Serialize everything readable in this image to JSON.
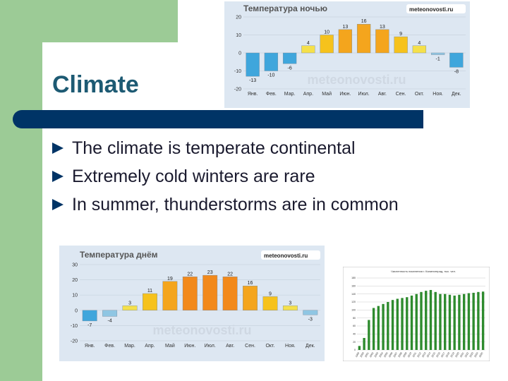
{
  "slide": {
    "title": "Climate",
    "bullets": [
      "The climate is temperate continental",
      "Extremely cold winters are rare",
      "In summer, thunderstorms are in common"
    ]
  },
  "colors": {
    "green": "#9ccb96",
    "navy": "#003466",
    "title": "#1d5a73"
  },
  "chart_data": [
    {
      "type": "bar",
      "title": "Температура ночью",
      "logo": "meteonovosti.ru",
      "watermark": "meteonovosti.ru",
      "categories": [
        "Янв.",
        "Фев.",
        "Мар.",
        "Апр.",
        "Май",
        "Июн.",
        "Июл.",
        "Авг.",
        "Сен.",
        "Окт.",
        "Ноя.",
        "Дек."
      ],
      "values": [
        -13,
        -10,
        -6,
        4,
        10,
        13,
        16,
        13,
        9,
        4,
        -1,
        -8
      ],
      "yticks": [
        20,
        10,
        0,
        -10,
        -20
      ],
      "ylim": [
        -20,
        20
      ]
    },
    {
      "type": "bar",
      "title": "Температура днём",
      "logo": "meteonovosti.ru",
      "watermark": "meteonovosti.ru",
      "categories": [
        "Янв.",
        "Фев.",
        "Мар.",
        "Апр.",
        "Май",
        "Июн.",
        "Июл.",
        "Авг.",
        "Сен.",
        "Окт.",
        "Ноя.",
        "Дек."
      ],
      "values": [
        -7,
        -4,
        3,
        11,
        19,
        22,
        23,
        22,
        16,
        9,
        3,
        -3
      ],
      "yticks": [
        30,
        20,
        10,
        0,
        -10,
        -20
      ],
      "ylim": [
        -20,
        30
      ]
    },
    {
      "type": "bar",
      "title": "Численность населения г. Калининград, тыс. чел.",
      "categories": [
        "1999",
        "2000",
        "2001",
        "2002",
        "2003",
        "2004",
        "2005",
        "2006",
        "2007",
        "2008",
        "2009",
        "2010",
        "2011",
        "2012",
        "2013",
        "2014",
        "2015",
        "2016",
        "2017",
        "2018",
        "2019",
        "2020",
        "2021",
        "2022",
        "2023",
        "2024",
        "2025"
      ],
      "values": [
        10,
        30,
        75,
        105,
        110,
        115,
        120,
        125,
        128,
        130,
        132,
        136,
        140,
        145,
        148,
        150,
        145,
        140,
        140,
        138,
        136,
        138,
        140,
        142,
        143,
        145,
        146
      ],
      "yticks": [
        180,
        160,
        140,
        120,
        100,
        80,
        60,
        40,
        20,
        0
      ],
      "ylim": [
        0,
        180
      ]
    }
  ]
}
